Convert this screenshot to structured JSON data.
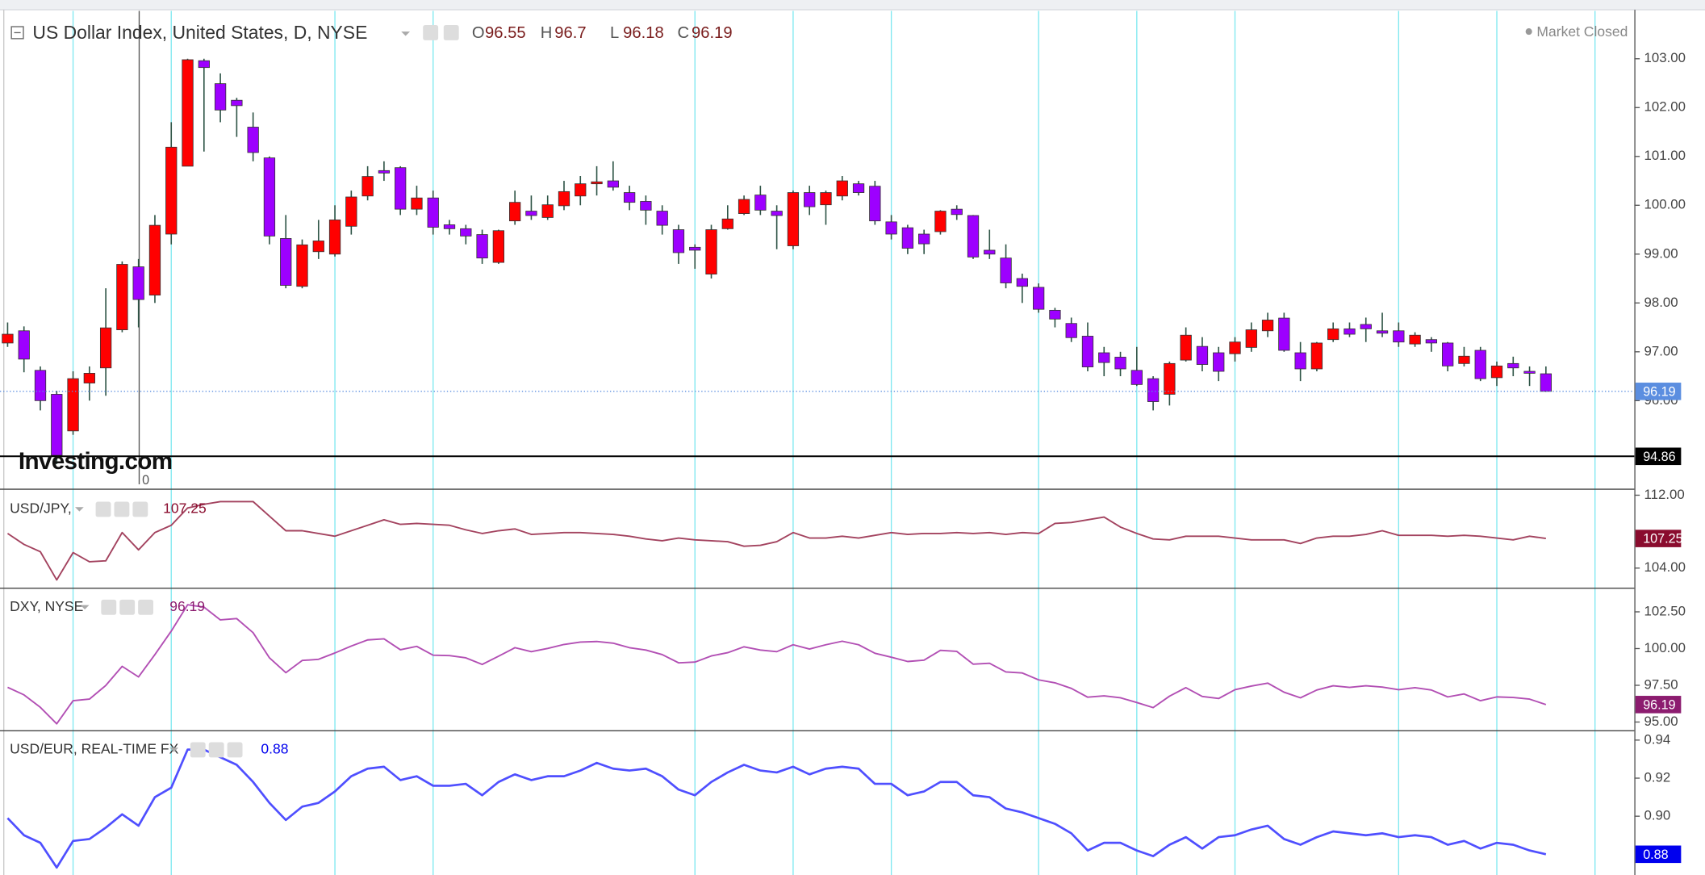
{
  "chart_data": [
    {
      "type": "candlestick",
      "title": "US Dollar Index, United States, D, NYSE",
      "ohlc_labels": [
        "O",
        "H",
        "L",
        "C"
      ],
      "status": "Market Closed",
      "watermark": "Investing.com",
      "crosshair_label": "0",
      "up_color": "#ff0000",
      "down_color": "#9d00ff",
      "tag_color": "#5b8ee0",
      "open": [
        97.18,
        97.43,
        96.62,
        96.13,
        95.38,
        96.36,
        96.67,
        97.45,
        98.74,
        98.16,
        99.41,
        100.8,
        102.96,
        102.49,
        102.15,
        101.6,
        100.97,
        99.32,
        98.34,
        99.05,
        99,
        99.57,
        100.19,
        100.71,
        100.77,
        99.92,
        100.15,
        99.6,
        99.52,
        99.4,
        98.83,
        99.68,
        99.88,
        99.75,
        99.99,
        100.19,
        100.44,
        100.5,
        100.26,
        100.08,
        99.88,
        99.5,
        99.14,
        98.59,
        99.52,
        99.83,
        100.21,
        99.88,
        99.17,
        100.26,
        100.01,
        100.19,
        100.44,
        100.39,
        99.66,
        99.54,
        99.41,
        99.46,
        99.92,
        99.79,
        99.08,
        98.92,
        98.5,
        98.32,
        97.85,
        97.58,
        97.32,
        96.98,
        96.89,
        96.62,
        96.45,
        96.13,
        96.83,
        97.11,
        96.98,
        96.96,
        97.09,
        97.43,
        97.69,
        96.98,
        96.65,
        97.25,
        97.47,
        97.56,
        97.43,
        97.43,
        97.16,
        97.25,
        97.18,
        96.76,
        97.03,
        96.47,
        96.76,
        96.6,
        96.55
      ],
      "high": [
        97.6,
        97.52,
        96.7,
        96.2,
        96.6,
        96.7,
        98.3,
        98.85,
        98.9,
        99.8,
        101.7,
        103,
        103,
        102.7,
        102.2,
        101.9,
        101,
        99.8,
        99.3,
        99.7,
        100,
        100.3,
        100.8,
        100.9,
        100.8,
        100.4,
        100.3,
        99.7,
        99.6,
        99.5,
        99.5,
        100.3,
        100.2,
        100.2,
        100.5,
        100.6,
        100.8,
        100.9,
        100.4,
        100.2,
        100,
        99.6,
        99.2,
        99.6,
        100,
        100.2,
        100.4,
        100,
        100.3,
        100.4,
        100.3,
        100.6,
        100.5,
        100.5,
        99.8,
        99.6,
        99.5,
        99.9,
        100,
        99.8,
        99.5,
        99.2,
        98.6,
        98.4,
        97.9,
        97.7,
        97.6,
        97.1,
        97,
        97.1,
        96.5,
        96.8,
        97.5,
        97.3,
        97.1,
        97.3,
        97.6,
        97.8,
        97.8,
        97.2,
        97.2,
        97.6,
        97.6,
        97.7,
        97.8,
        97.6,
        97.4,
        97.3,
        97.2,
        97.1,
        97.1,
        96.8,
        96.9,
        96.7,
        96.7
      ],
      "low": [
        97.1,
        96.58,
        95.8,
        94.7,
        95.3,
        96,
        96.1,
        97.4,
        97.5,
        98,
        99.2,
        100.8,
        101.1,
        101.7,
        101.4,
        100.9,
        99.2,
        98.3,
        98.3,
        98.9,
        98.95,
        99.4,
        100.1,
        100.5,
        99.8,
        99.8,
        99.4,
        99.4,
        99.2,
        98.8,
        98.8,
        99.6,
        99.7,
        99.7,
        99.9,
        100,
        100.2,
        100.3,
        99.9,
        99.6,
        99.4,
        98.8,
        98.7,
        98.5,
        99.5,
        99.8,
        99.8,
        99.1,
        99.1,
        99.8,
        99.6,
        100.1,
        100.2,
        99.6,
        99.3,
        99,
        99,
        99.4,
        99.7,
        98.9,
        98.9,
        98.3,
        98,
        97.8,
        97.5,
        97.2,
        96.6,
        96.5,
        96.5,
        96.3,
        95.8,
        95.9,
        96.8,
        96.6,
        96.4,
        96.8,
        97,
        97.3,
        97,
        96.4,
        96.6,
        97.2,
        97.3,
        97.2,
        97.3,
        97.1,
        97.1,
        97,
        96.6,
        96.7,
        96.4,
        96.3,
        96.5,
        96.3,
        96.18
      ],
      "close": [
        97.36,
        96.85,
        96,
        94.88,
        96.45,
        96.56,
        97.49,
        98.79,
        98.07,
        99.59,
        101.19,
        102.98,
        102.82,
        101.95,
        102.04,
        101.08,
        99.37,
        98.36,
        99.19,
        99.27,
        99.7,
        100.17,
        100.59,
        100.66,
        99.92,
        100.15,
        99.55,
        99.52,
        99.37,
        98.92,
        99.48,
        100.06,
        99.79,
        100.01,
        100.28,
        100.44,
        100.48,
        100.37,
        100.06,
        99.9,
        99.59,
        99.03,
        99.08,
        99.5,
        99.72,
        100.12,
        99.9,
        99.79,
        100.26,
        99.97,
        100.26,
        100.5,
        100.26,
        99.68,
        99.41,
        99.12,
        99.21,
        99.88,
        99.81,
        98.94,
        99,
        98.41,
        98.34,
        97.87,
        97.67,
        97.29,
        96.69,
        96.78,
        96.65,
        96.33,
        95.98,
        96.76,
        97.34,
        96.74,
        96.6,
        97.2,
        97.45,
        97.65,
        97.03,
        96.65,
        97.18,
        97.47,
        97.36,
        97.47,
        97.38,
        97.2,
        97.34,
        97.18,
        96.71,
        96.91,
        96.45,
        96.71,
        96.67,
        96.56,
        96.19
      ],
      "ylim": [
        94.22,
        103.98
      ],
      "yticks": [
        {
          "value": 96,
          "label": "96.00"
        },
        {
          "value": 97,
          "label": "97.00"
        },
        {
          "value": 98,
          "label": "98.00"
        },
        {
          "value": 99,
          "label": "99.00"
        },
        {
          "value": 100,
          "label": "100.00"
        },
        {
          "value": 101,
          "label": "101.00"
        },
        {
          "value": 102,
          "label": "102.00"
        },
        {
          "value": 103,
          "label": "103.00"
        }
      ],
      "price_line": 94.86
    },
    {
      "type": "line",
      "title": "USD/JPY,",
      "color": "#a3435f",
      "tag_color": "#8a0c2e",
      "values": [
        107.8,
        106.6,
        105.8,
        102.7,
        105.7,
        104.7,
        104.8,
        107.9,
        106,
        107.9,
        108.7,
        110.6,
        111,
        111.3,
        111.3,
        111.3,
        109.7,
        108.1,
        108.1,
        107.8,
        107.5,
        108.1,
        108.7,
        109.3,
        108.8,
        108.9,
        108.8,
        108.7,
        108.2,
        107.8,
        108.1,
        108.3,
        107.7,
        107.8,
        107.9,
        107.9,
        107.8,
        107.7,
        107.5,
        107.2,
        107,
        107.3,
        107.1,
        107,
        106.9,
        106.4,
        106.5,
        106.9,
        107.9,
        107.3,
        107.3,
        107.5,
        107.3,
        107.6,
        107.9,
        107.7,
        107.8,
        107.8,
        107.9,
        107.8,
        107.9,
        107.7,
        107.9,
        107.8,
        108.9,
        109,
        109.3,
        109.6,
        108.5,
        107.8,
        107.2,
        107.1,
        107.5,
        107.5,
        107.5,
        107.3,
        107.1,
        107.1,
        107.1,
        106.7,
        107.3,
        107.5,
        107.5,
        107.7,
        108.1,
        107.6,
        107.6,
        107.6,
        107.5,
        107.6,
        107.5,
        107.3,
        107.1,
        107.5,
        107.25
      ],
      "ylim": [
        101.85,
        112.48
      ],
      "yticks": [
        {
          "value": 104,
          "label": "104.00"
        },
        {
          "value": 112,
          "label": "112.00"
        }
      ]
    },
    {
      "type": "line",
      "title": "DXY, NYSE",
      "color": "#b24fb4",
      "tag_color": "#8c1c6f",
      "values": [
        97.36,
        96.85,
        96,
        94.88,
        96.45,
        96.56,
        97.49,
        98.79,
        98.07,
        99.59,
        101.19,
        102.98,
        102.82,
        101.95,
        102.04,
        101.08,
        99.37,
        98.36,
        99.19,
        99.27,
        99.7,
        100.17,
        100.59,
        100.66,
        99.92,
        100.15,
        99.55,
        99.52,
        99.37,
        98.92,
        99.48,
        100.06,
        99.79,
        100.01,
        100.28,
        100.44,
        100.48,
        100.37,
        100.06,
        99.9,
        99.59,
        99.03,
        99.08,
        99.5,
        99.72,
        100.12,
        99.9,
        99.79,
        100.26,
        99.97,
        100.26,
        100.5,
        100.26,
        99.68,
        99.41,
        99.12,
        99.21,
        99.88,
        99.81,
        98.94,
        99,
        98.41,
        98.34,
        97.87,
        97.67,
        97.29,
        96.69,
        96.78,
        96.65,
        96.33,
        95.98,
        96.76,
        97.34,
        96.74,
        96.6,
        97.2,
        97.45,
        97.65,
        97.03,
        96.65,
        97.18,
        97.47,
        97.36,
        97.47,
        97.38,
        97.2,
        97.34,
        97.18,
        96.71,
        96.91,
        96.45,
        96.71,
        96.67,
        96.56,
        96.19
      ],
      "ylim": [
        94.44,
        104.07
      ],
      "yticks": [
        {
          "value": 95,
          "label": "95.00"
        },
        {
          "value": 97.5,
          "label": "97.50"
        },
        {
          "value": 100,
          "label": "100.00"
        },
        {
          "value": 102.5,
          "label": "102.50"
        }
      ]
    },
    {
      "type": "line",
      "title": "USD/EUR, REAL-TIME FX",
      "color": "#4f4fff",
      "tag_color": "#0000ee",
      "values": [
        0.899,
        0.89,
        0.886,
        0.873,
        0.887,
        0.888,
        0.894,
        0.901,
        0.895,
        0.91,
        0.915,
        0.935,
        0.935,
        0.931,
        0.927,
        0.918,
        0.907,
        0.898,
        0.905,
        0.907,
        0.913,
        0.921,
        0.925,
        0.926,
        0.919,
        0.921,
        0.916,
        0.916,
        0.917,
        0.911,
        0.918,
        0.922,
        0.919,
        0.921,
        0.921,
        0.924,
        0.928,
        0.925,
        0.924,
        0.925,
        0.921,
        0.914,
        0.911,
        0.918,
        0.923,
        0.927,
        0.924,
        0.923,
        0.926,
        0.922,
        0.925,
        0.926,
        0.925,
        0.917,
        0.917,
        0.911,
        0.913,
        0.918,
        0.918,
        0.911,
        0.91,
        0.904,
        0.902,
        0.899,
        0.896,
        0.891,
        0.882,
        0.886,
        0.886,
        0.882,
        0.879,
        0.885,
        0.889,
        0.883,
        0.889,
        0.89,
        0.893,
        0.895,
        0.888,
        0.885,
        0.889,
        0.892,
        0.891,
        0.89,
        0.891,
        0.889,
        0.89,
        0.889,
        0.885,
        0.887,
        0.883,
        0.886,
        0.885,
        0.882,
        0.88
      ],
      "ylim": [
        0.8691,
        0.9446
      ],
      "yticks": [
        {
          "value": 0.9,
          "label": "0.90"
        },
        {
          "value": 0.92,
          "label": "0.92"
        },
        {
          "value": 0.94,
          "label": "0.94"
        }
      ]
    }
  ]
}
